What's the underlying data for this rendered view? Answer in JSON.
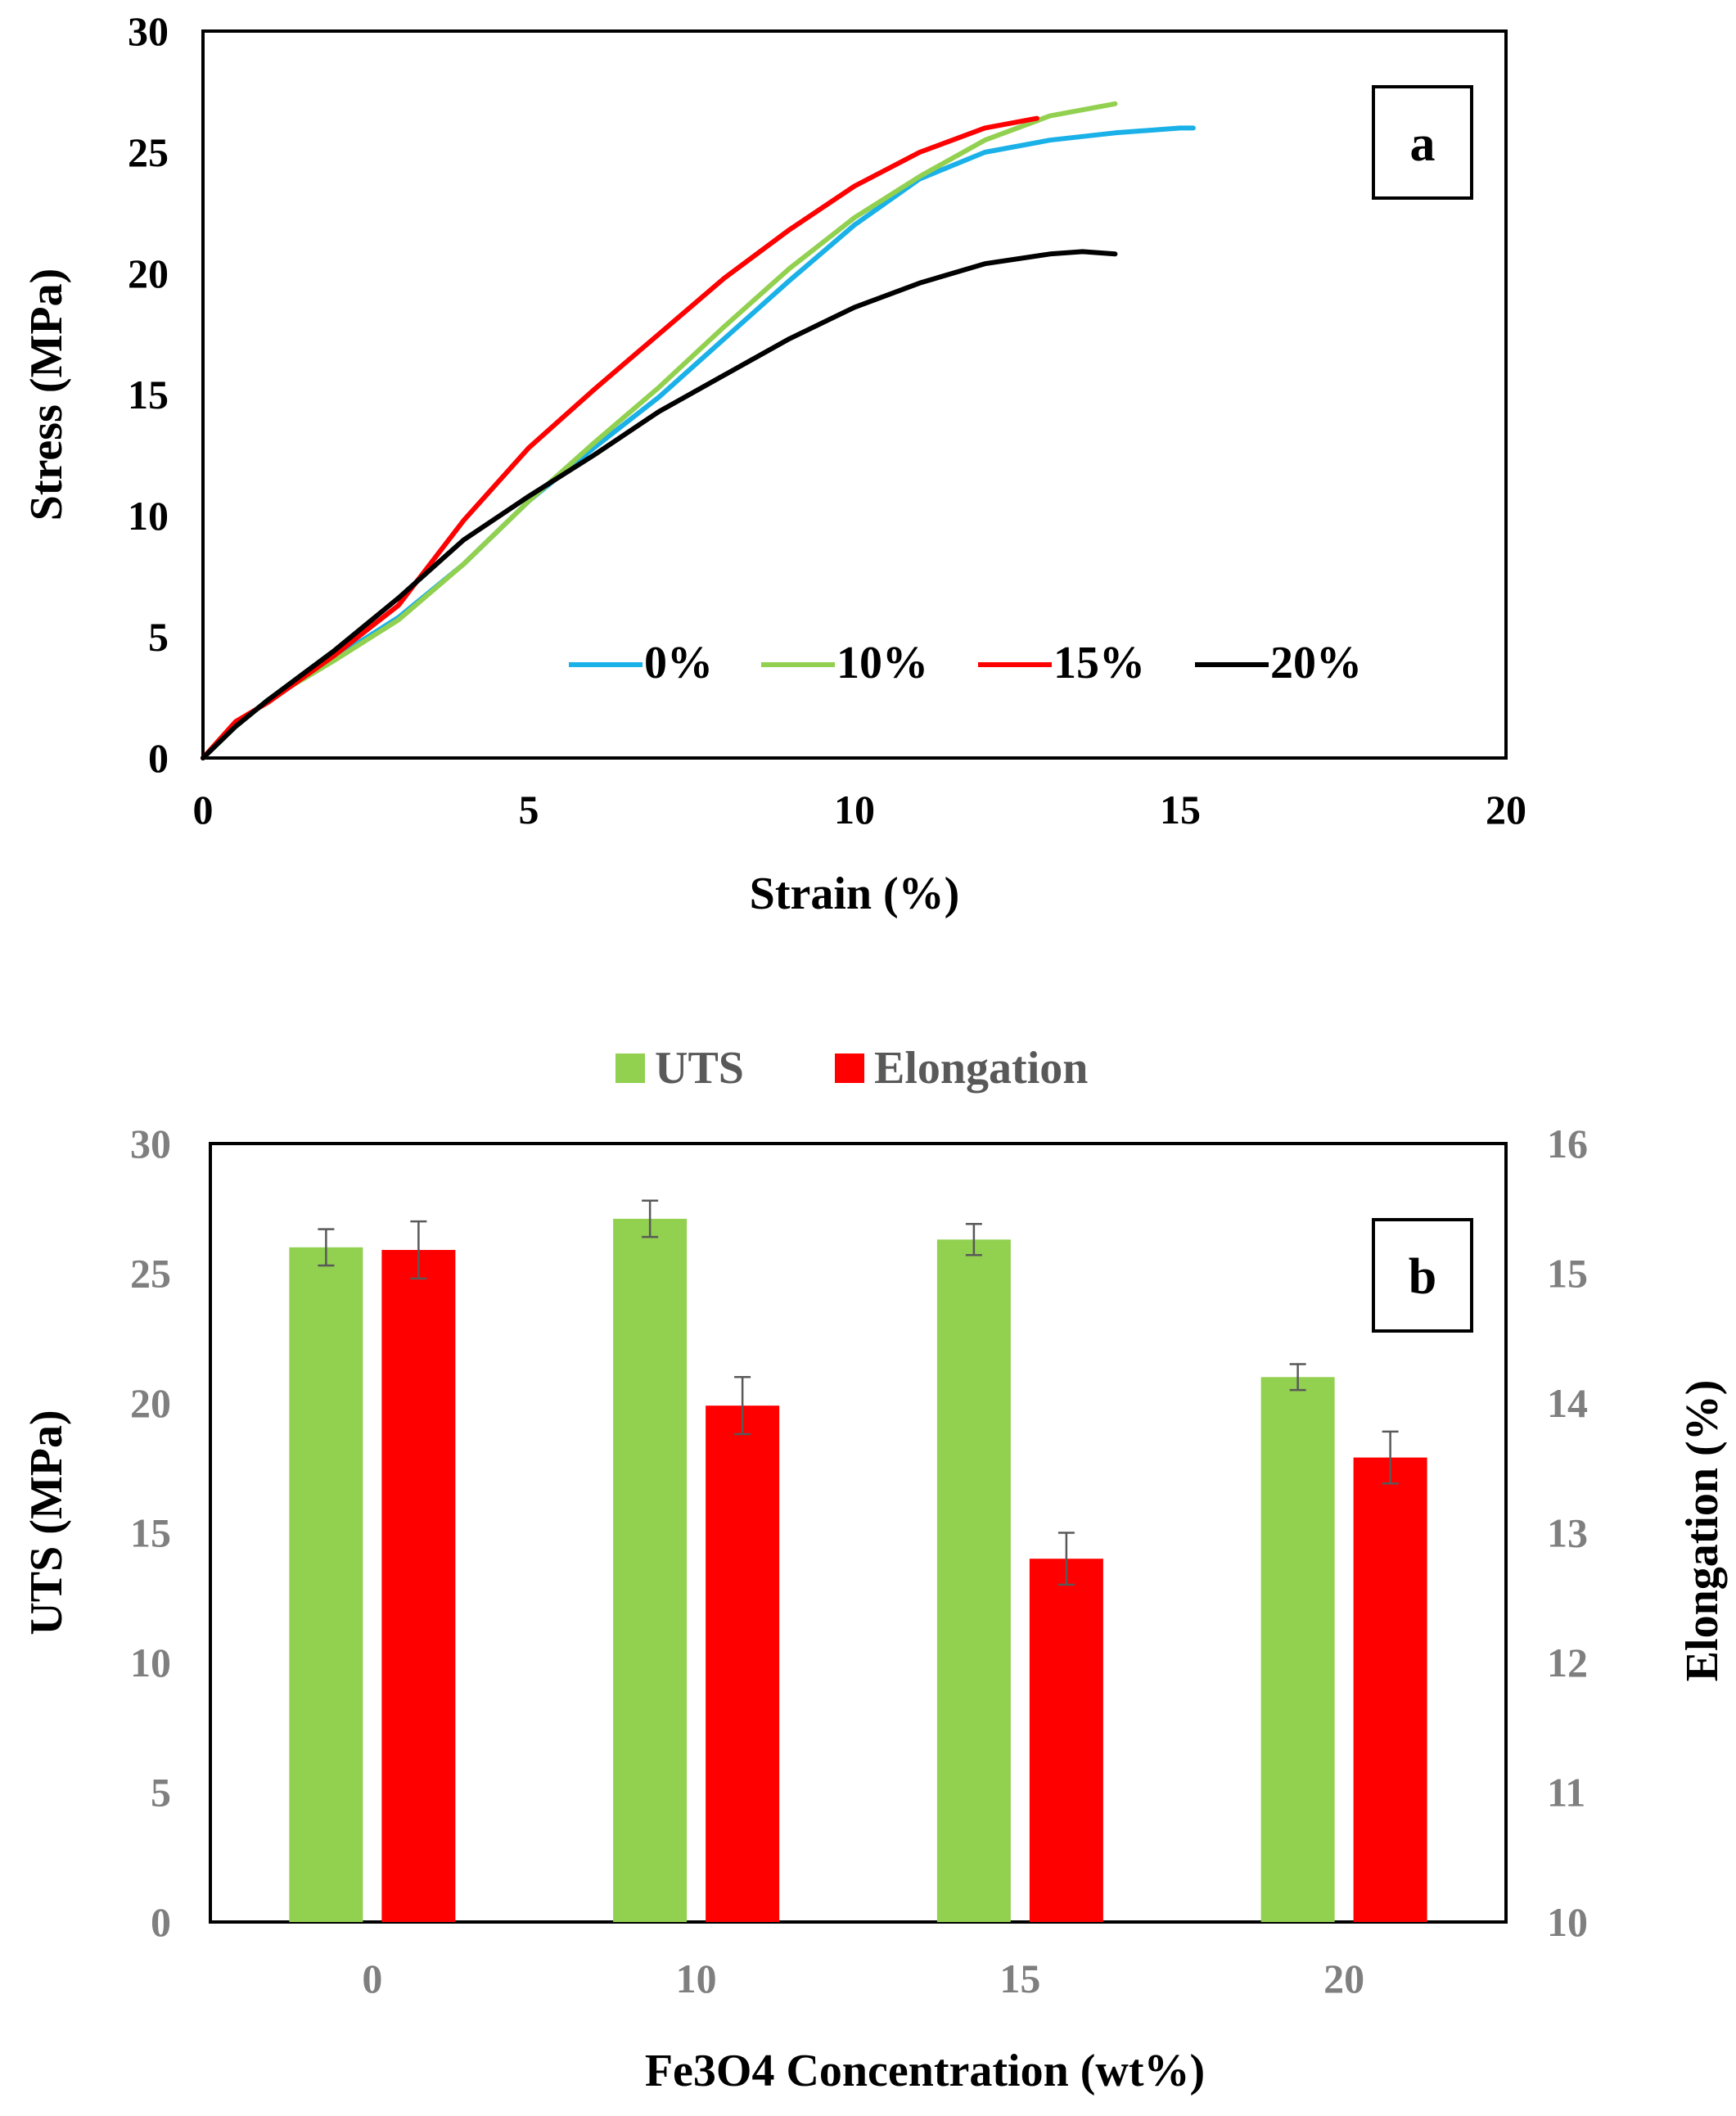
{
  "chart_data": [
    {
      "type": "line",
      "panel_label": "a",
      "xlabel": "Strain (%)",
      "ylabel": "Stress  (MPa)",
      "xlim": [
        0,
        20
      ],
      "ylim": [
        0,
        30
      ],
      "x_ticks": [
        0,
        5,
        10,
        15,
        20
      ],
      "y_ticks": [
        0,
        5,
        10,
        15,
        20,
        25,
        30
      ],
      "grid": false,
      "legend_position": "bottom-right inside",
      "series": [
        {
          "name": "0%",
          "color": "#1ab0e8",
          "points": [
            [
              0,
              0
            ],
            [
              0.5,
              1.3
            ],
            [
              1,
              2.4
            ],
            [
              2,
              4.1
            ],
            [
              3,
              5.8
            ],
            [
              4,
              8.0
            ],
            [
              5,
              10.6
            ],
            [
              6,
              12.8
            ],
            [
              7,
              14.9
            ],
            [
              8,
              17.3
            ],
            [
              9,
              19.7
            ],
            [
              10,
              22.0
            ],
            [
              11,
              23.9
            ],
            [
              12,
              25.0
            ],
            [
              13,
              25.5
            ],
            [
              14,
              25.8
            ],
            [
              15,
              26.0
            ],
            [
              15.2,
              26.0
            ]
          ]
        },
        {
          "name": "10%",
          "color": "#92d050",
          "points": [
            [
              0,
              0
            ],
            [
              0.5,
              1.3
            ],
            [
              1,
              2.4
            ],
            [
              2,
              4.0
            ],
            [
              3,
              5.7
            ],
            [
              4,
              8.0
            ],
            [
              5,
              10.6
            ],
            [
              6,
              13.0
            ],
            [
              7,
              15.3
            ],
            [
              8,
              17.8
            ],
            [
              9,
              20.2
            ],
            [
              10,
              22.3
            ],
            [
              11,
              24.0
            ],
            [
              12,
              25.5
            ],
            [
              13,
              26.5
            ],
            [
              14,
              27.0
            ]
          ]
        },
        {
          "name": "15%",
          "color": "#ff0000",
          "points": [
            [
              0,
              0
            ],
            [
              0.5,
              1.5
            ],
            [
              1,
              2.3
            ],
            [
              2,
              4.2
            ],
            [
              3,
              6.3
            ],
            [
              4,
              9.8
            ],
            [
              5,
              12.8
            ],
            [
              6,
              15.2
            ],
            [
              7,
              17.5
            ],
            [
              8,
              19.8
            ],
            [
              9,
              21.8
            ],
            [
              10,
              23.6
            ],
            [
              11,
              25.0
            ],
            [
              12,
              26.0
            ],
            [
              12.8,
              26.4
            ]
          ]
        },
        {
          "name": "20%",
          "color": "#000000",
          "points": [
            [
              0,
              0
            ],
            [
              0.5,
              1.3
            ],
            [
              1,
              2.4
            ],
            [
              2,
              4.4
            ],
            [
              3,
              6.6
            ],
            [
              4,
              9.0
            ],
            [
              5,
              10.8
            ],
            [
              6,
              12.5
            ],
            [
              7,
              14.3
            ],
            [
              8,
              15.8
            ],
            [
              9,
              17.3
            ],
            [
              10,
              18.6
            ],
            [
              11,
              19.6
            ],
            [
              12,
              20.4
            ],
            [
              13,
              20.8
            ],
            [
              13.5,
              20.9
            ],
            [
              14,
              20.8
            ]
          ]
        }
      ]
    },
    {
      "type": "bar",
      "panel_label": "b",
      "categories": [
        "0",
        "10",
        "15",
        "20"
      ],
      "xlabel": "Fe3O4 Concentration  (wt%)",
      "ylabel": "UTS (MPa)",
      "y2label": "Elongation  (%)",
      "ylim": [
        0,
        30
      ],
      "y2lim": [
        10,
        16
      ],
      "y_ticks": [
        0,
        5,
        10,
        15,
        20,
        25,
        30
      ],
      "y2_ticks": [
        10,
        11,
        12,
        13,
        14,
        15,
        16
      ],
      "grid": false,
      "legend_position": "top-center outside",
      "series": [
        {
          "name": "UTS",
          "axis": "left",
          "color": "#92d050",
          "values": [
            26.0,
            27.1,
            26.3,
            21.0
          ],
          "errors": [
            0.7,
            0.7,
            0.6,
            0.5
          ]
        },
        {
          "name": "Elongation",
          "axis": "right",
          "color": "#ff0000",
          "values": [
            15.18,
            13.98,
            12.8,
            13.58
          ],
          "errors": [
            0.22,
            0.22,
            0.2,
            0.2
          ]
        }
      ]
    }
  ]
}
